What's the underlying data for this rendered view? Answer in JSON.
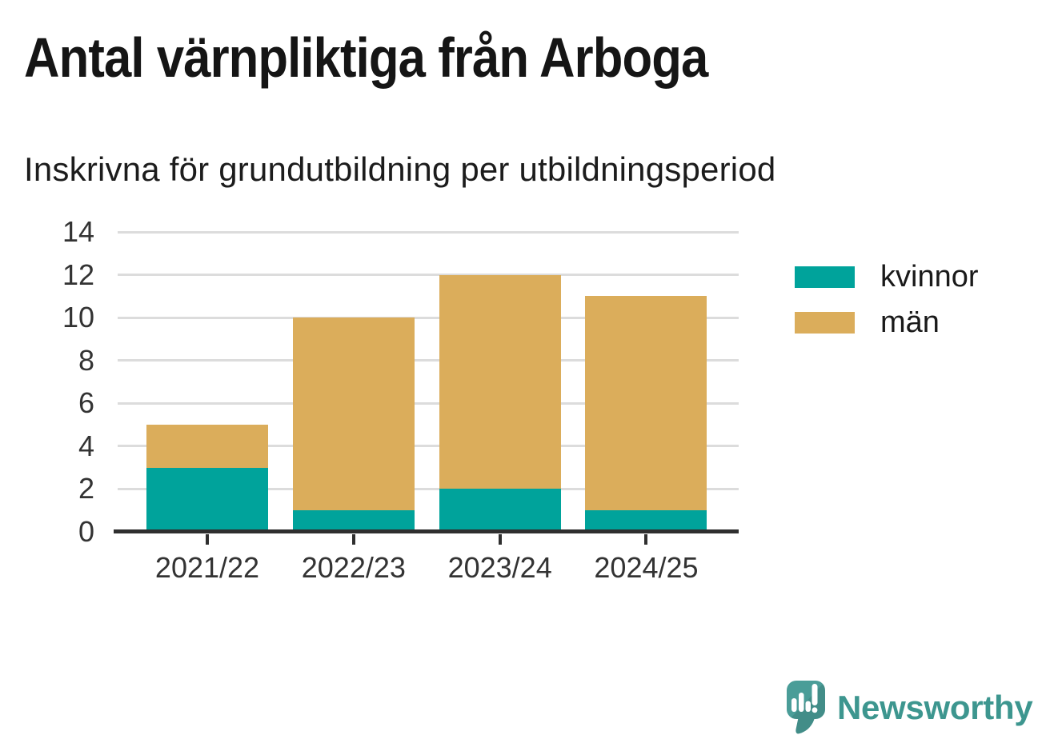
{
  "header": {
    "title": "Antal värnpliktiga från Arboga",
    "subtitle": "Inskrivna för grundutbildning per utbildningsperiod"
  },
  "chart_data": {
    "type": "bar",
    "stacked": true,
    "title": "Antal värnpliktiga från Arboga",
    "subtitle": "Inskrivna för grundutbildning per utbildningsperiod",
    "categories": [
      "2021/22",
      "2022/23",
      "2023/24",
      "2024/25"
    ],
    "series": [
      {
        "name": "kvinnor",
        "color": "#00A39B",
        "values": [
          3,
          1,
          2,
          1
        ]
      },
      {
        "name": "män",
        "color": "#DBAD5B",
        "values": [
          2,
          9,
          10,
          10
        ]
      }
    ],
    "totals": [
      5,
      10,
      12,
      11
    ],
    "xlabel": "",
    "ylabel": "",
    "ylim": [
      0,
      14
    ],
    "yticks": [
      0,
      2,
      4,
      6,
      8,
      10,
      12,
      14
    ],
    "grid": true,
    "legend_position": "right"
  },
  "legend": {
    "items": [
      {
        "label": "kvinnor",
        "color": "#00A39B"
      },
      {
        "label": "män",
        "color": "#DBAD5B"
      }
    ]
  },
  "footer": {
    "brand_name": "Newsworthy"
  },
  "colors": {
    "bar_kvinnor": "#00A39B",
    "bar_man": "#DBAD5B",
    "axis_line": "#2F2F2F",
    "grid_line": "#DCDCDC",
    "tick_label": "#333333",
    "title_text": "#151515",
    "brand_teal": "#3D968F",
    "logo_bubble": "#4A9D98"
  }
}
